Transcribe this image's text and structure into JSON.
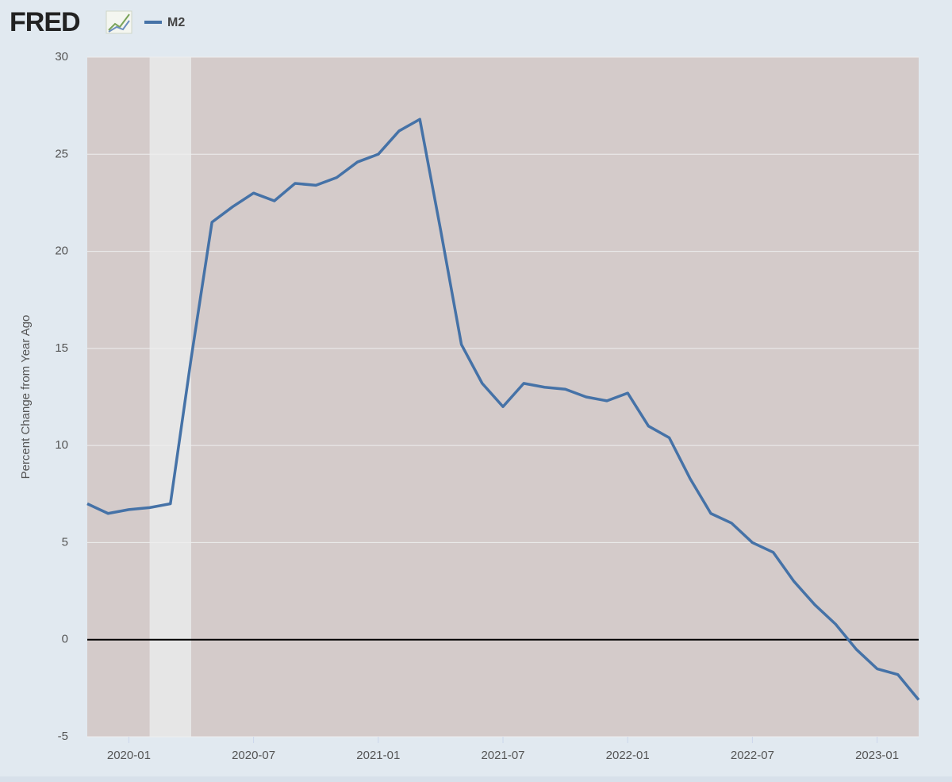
{
  "brand": "FRED",
  "chart_data": {
    "type": "line",
    "y_label": "Percent Change from Year Ago",
    "x": [
      "2019-11",
      "2019-12",
      "2020-01",
      "2020-02",
      "2020-03",
      "2020-04",
      "2020-05",
      "2020-06",
      "2020-07",
      "2020-08",
      "2020-09",
      "2020-10",
      "2020-11",
      "2020-12",
      "2021-01",
      "2021-02",
      "2021-03",
      "2021-04",
      "2021-05",
      "2021-06",
      "2021-07",
      "2021-08",
      "2021-09",
      "2021-10",
      "2021-11",
      "2021-12",
      "2022-01",
      "2022-02",
      "2022-03",
      "2022-04",
      "2022-05",
      "2022-06",
      "2022-07",
      "2022-08",
      "2022-09",
      "2022-10",
      "2022-11",
      "2022-12",
      "2023-01",
      "2023-02",
      "2023-03"
    ],
    "series": [
      {
        "name": "M2",
        "color": "#4572a7",
        "values": [
          7.0,
          6.5,
          6.7,
          6.8,
          7.0,
          14.5,
          21.5,
          22.3,
          23.0,
          22.6,
          23.5,
          23.4,
          23.8,
          24.6,
          25.0,
          26.2,
          26.8,
          21.1,
          15.2,
          13.2,
          12.0,
          13.2,
          13.0,
          12.9,
          12.5,
          12.3,
          12.7,
          11.0,
          10.4,
          8.3,
          6.5,
          6.0,
          5.0,
          4.5,
          3.0,
          1.8,
          0.8,
          -0.5,
          -1.5,
          -1.8,
          -3.1
        ]
      }
    ],
    "xlim": [
      "2019-11",
      "2023-03"
    ],
    "xticks": [
      "2020-01",
      "2020-07",
      "2021-01",
      "2021-07",
      "2022-01",
      "2022-07",
      "2023-01"
    ],
    "ylim": [
      -5,
      30
    ],
    "yticks": [
      -5,
      0,
      5,
      10,
      15,
      20,
      25,
      30
    ],
    "grid": true,
    "recession": [
      "2020-02",
      "2020-04"
    ]
  }
}
